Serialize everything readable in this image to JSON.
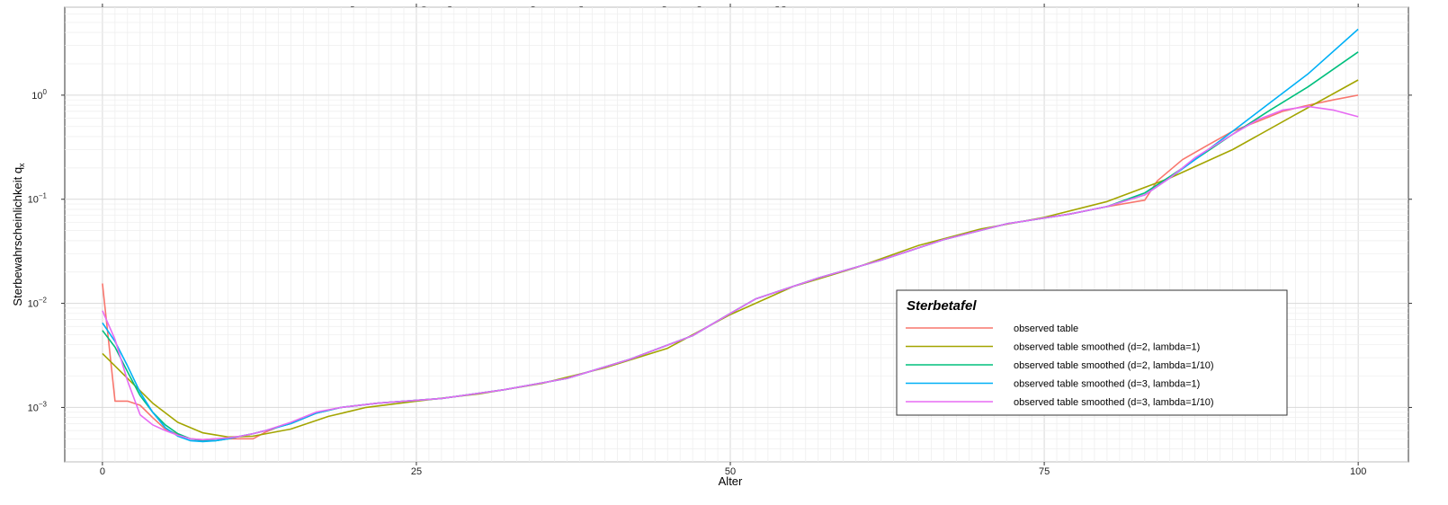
{
  "chart_data": {
    "type": "line",
    "title": "Comparison of observed and smoothed mortality rates",
    "xlabel": "Alter",
    "ylabel": "Sterbewahrscheinlichkeit q",
    "ylabel_sub": "x",
    "y_scale": "log",
    "xlim": [
      -3,
      104
    ],
    "ylim": [
      0.0003,
      7
    ],
    "grid": true,
    "x_ticks": [
      0,
      25,
      50,
      75,
      100
    ],
    "y_ticks": [
      {
        "value": 0.001,
        "base": "10",
        "exp": "−3"
      },
      {
        "value": 0.01,
        "base": "10",
        "exp": "−2"
      },
      {
        "value": 0.1,
        "base": "10",
        "exp": "−1"
      },
      {
        "value": 1,
        "base": "10",
        "exp": "0"
      }
    ],
    "legend": {
      "title": "Sterbetafel",
      "position": "bottom-right"
    },
    "series": [
      {
        "name": "observed table",
        "color": "#F8766D",
        "x": [
          0,
          1,
          2,
          3,
          4,
          5,
          6,
          7,
          8,
          9,
          10,
          11,
          12,
          13,
          14,
          15,
          17,
          19,
          22,
          27,
          32,
          37,
          42,
          47,
          50,
          52,
          57,
          62,
          67,
          72,
          77,
          80,
          83,
          84,
          86,
          88,
          90,
          92,
          94,
          96,
          98,
          100
        ],
        "y": [
          0.0155,
          0.00115,
          0.00115,
          0.00105,
          0.0008,
          0.00062,
          0.00055,
          0.0005,
          0.00049,
          0.0005,
          0.0005,
          0.0005,
          0.0005,
          0.00058,
          0.00065,
          0.0007,
          0.00088,
          0.001,
          0.0011,
          0.00122,
          0.00148,
          0.0019,
          0.0029,
          0.0049,
          0.008,
          0.011,
          0.0175,
          0.026,
          0.041,
          0.058,
          0.072,
          0.085,
          0.098,
          0.15,
          0.24,
          0.33,
          0.45,
          0.56,
          0.7,
          0.8,
          0.9,
          1.0
        ]
      },
      {
        "name": "observed table smoothed (d=2, lambda=1)",
        "color": "#A3A500",
        "x": [
          0,
          2,
          4,
          6,
          8,
          10,
          12,
          15,
          18,
          21,
          25,
          30,
          35,
          40,
          45,
          50,
          55,
          60,
          65,
          70,
          75,
          80,
          85,
          90,
          95,
          100
        ],
        "y": [
          0.0033,
          0.0019,
          0.0011,
          0.00072,
          0.00057,
          0.00052,
          0.00053,
          0.00062,
          0.00082,
          0.001,
          0.00115,
          0.00135,
          0.0017,
          0.0024,
          0.0037,
          0.0078,
          0.0145,
          0.022,
          0.036,
          0.052,
          0.067,
          0.095,
          0.16,
          0.3,
          0.65,
          1.4
        ]
      },
      {
        "name": "observed table smoothed (d=2, lambda=1/10)",
        "color": "#00BF7D",
        "x": [
          0,
          1,
          2,
          3,
          4,
          5,
          6,
          7,
          8,
          9,
          10,
          11,
          12,
          13,
          15,
          17,
          19,
          22,
          27,
          32,
          37,
          42,
          47,
          50,
          52,
          57,
          62,
          67,
          72,
          77,
          80,
          83,
          85,
          87,
          90,
          93,
          96,
          100
        ],
        "y": [
          0.0055,
          0.0038,
          0.0022,
          0.0013,
          0.0009,
          0.00068,
          0.00056,
          0.0005,
          0.00048,
          0.00048,
          0.0005,
          0.00053,
          0.00056,
          0.0006,
          0.0007,
          0.00088,
          0.001,
          0.0011,
          0.00122,
          0.00148,
          0.0019,
          0.0029,
          0.0049,
          0.008,
          0.011,
          0.0175,
          0.026,
          0.041,
          0.058,
          0.072,
          0.085,
          0.115,
          0.165,
          0.24,
          0.42,
          0.72,
          1.2,
          2.6
        ]
      },
      {
        "name": "observed table smoothed (d=3, lambda=1)",
        "color": "#00B0F6",
        "x": [
          0,
          1,
          2,
          3,
          4,
          5,
          6,
          7,
          8,
          9,
          10,
          11,
          12,
          13,
          15,
          17,
          19,
          22,
          27,
          32,
          37,
          42,
          47,
          50,
          52,
          57,
          62,
          67,
          72,
          77,
          80,
          83,
          85,
          87,
          90,
          93,
          96,
          100
        ],
        "y": [
          0.0065,
          0.0043,
          0.0025,
          0.0014,
          0.0009,
          0.00064,
          0.00053,
          0.00048,
          0.00047,
          0.00048,
          0.0005,
          0.00053,
          0.00056,
          0.0006,
          0.0007,
          0.00088,
          0.001,
          0.0011,
          0.00122,
          0.00148,
          0.0019,
          0.0029,
          0.0049,
          0.008,
          0.011,
          0.0175,
          0.026,
          0.041,
          0.058,
          0.072,
          0.085,
          0.11,
          0.16,
          0.24,
          0.45,
          0.85,
          1.6,
          4.3
        ]
      },
      {
        "name": "observed table smoothed (d=3, lambda=1/10)",
        "color": "#E76BF3",
        "x": [
          0,
          1,
          2,
          3,
          4,
          5,
          6,
          7,
          8,
          9,
          10,
          11,
          12,
          13,
          15,
          17,
          19,
          22,
          27,
          32,
          37,
          42,
          47,
          50,
          52,
          57,
          62,
          67,
          72,
          77,
          80,
          83,
          85,
          87,
          90,
          92,
          94,
          96,
          98,
          100
        ],
        "y": [
          0.0085,
          0.0045,
          0.0018,
          0.00085,
          0.00068,
          0.0006,
          0.00054,
          0.0005,
          0.00049,
          0.0005,
          0.00051,
          0.00053,
          0.00056,
          0.0006,
          0.00072,
          0.0009,
          0.001,
          0.0011,
          0.00122,
          0.00148,
          0.0019,
          0.0029,
          0.0049,
          0.008,
          0.011,
          0.0175,
          0.026,
          0.041,
          0.058,
          0.072,
          0.085,
          0.11,
          0.16,
          0.25,
          0.42,
          0.58,
          0.72,
          0.78,
          0.72,
          0.62
        ]
      }
    ]
  }
}
